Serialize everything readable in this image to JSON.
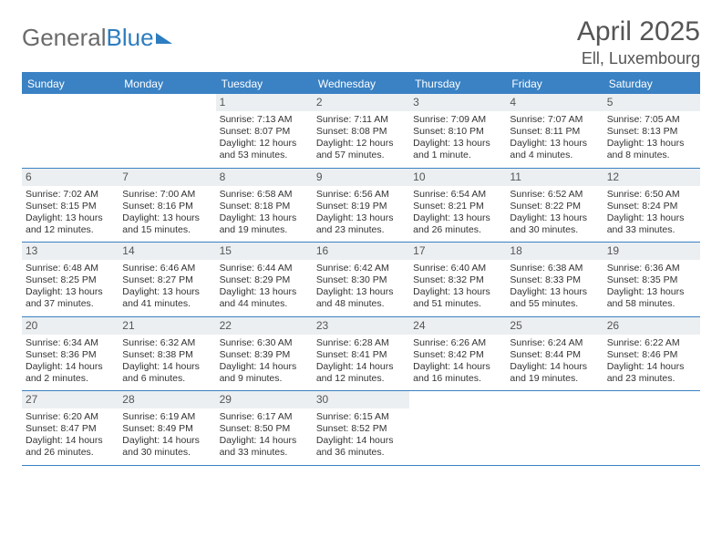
{
  "logo": {
    "part1": "General",
    "part2": "Blue"
  },
  "title": "April 2025",
  "location": "Ell, Luxembourg",
  "dayNames": [
    "Sunday",
    "Monday",
    "Tuesday",
    "Wednesday",
    "Thursday",
    "Friday",
    "Saturday"
  ],
  "colors": {
    "headerBlue": "#3a82c4",
    "logoBlue": "#2d7dc0",
    "dayNumBg": "#eceff1",
    "text": "#333333",
    "titleText": "#555555"
  },
  "weeks": [
    [
      {
        "n": "",
        "lines": []
      },
      {
        "n": "",
        "lines": []
      },
      {
        "n": "1",
        "lines": [
          "Sunrise: 7:13 AM",
          "Sunset: 8:07 PM",
          "Daylight: 12 hours and 53 minutes."
        ]
      },
      {
        "n": "2",
        "lines": [
          "Sunrise: 7:11 AM",
          "Sunset: 8:08 PM",
          "Daylight: 12 hours and 57 minutes."
        ]
      },
      {
        "n": "3",
        "lines": [
          "Sunrise: 7:09 AM",
          "Sunset: 8:10 PM",
          "Daylight: 13 hours and 1 minute."
        ]
      },
      {
        "n": "4",
        "lines": [
          "Sunrise: 7:07 AM",
          "Sunset: 8:11 PM",
          "Daylight: 13 hours and 4 minutes."
        ]
      },
      {
        "n": "5",
        "lines": [
          "Sunrise: 7:05 AM",
          "Sunset: 8:13 PM",
          "Daylight: 13 hours and 8 minutes."
        ]
      }
    ],
    [
      {
        "n": "6",
        "lines": [
          "Sunrise: 7:02 AM",
          "Sunset: 8:15 PM",
          "Daylight: 13 hours and 12 minutes."
        ]
      },
      {
        "n": "7",
        "lines": [
          "Sunrise: 7:00 AM",
          "Sunset: 8:16 PM",
          "Daylight: 13 hours and 15 minutes."
        ]
      },
      {
        "n": "8",
        "lines": [
          "Sunrise: 6:58 AM",
          "Sunset: 8:18 PM",
          "Daylight: 13 hours and 19 minutes."
        ]
      },
      {
        "n": "9",
        "lines": [
          "Sunrise: 6:56 AM",
          "Sunset: 8:19 PM",
          "Daylight: 13 hours and 23 minutes."
        ]
      },
      {
        "n": "10",
        "lines": [
          "Sunrise: 6:54 AM",
          "Sunset: 8:21 PM",
          "Daylight: 13 hours and 26 minutes."
        ]
      },
      {
        "n": "11",
        "lines": [
          "Sunrise: 6:52 AM",
          "Sunset: 8:22 PM",
          "Daylight: 13 hours and 30 minutes."
        ]
      },
      {
        "n": "12",
        "lines": [
          "Sunrise: 6:50 AM",
          "Sunset: 8:24 PM",
          "Daylight: 13 hours and 33 minutes."
        ]
      }
    ],
    [
      {
        "n": "13",
        "lines": [
          "Sunrise: 6:48 AM",
          "Sunset: 8:25 PM",
          "Daylight: 13 hours and 37 minutes."
        ]
      },
      {
        "n": "14",
        "lines": [
          "Sunrise: 6:46 AM",
          "Sunset: 8:27 PM",
          "Daylight: 13 hours and 41 minutes."
        ]
      },
      {
        "n": "15",
        "lines": [
          "Sunrise: 6:44 AM",
          "Sunset: 8:29 PM",
          "Daylight: 13 hours and 44 minutes."
        ]
      },
      {
        "n": "16",
        "lines": [
          "Sunrise: 6:42 AM",
          "Sunset: 8:30 PM",
          "Daylight: 13 hours and 48 minutes."
        ]
      },
      {
        "n": "17",
        "lines": [
          "Sunrise: 6:40 AM",
          "Sunset: 8:32 PM",
          "Daylight: 13 hours and 51 minutes."
        ]
      },
      {
        "n": "18",
        "lines": [
          "Sunrise: 6:38 AM",
          "Sunset: 8:33 PM",
          "Daylight: 13 hours and 55 minutes."
        ]
      },
      {
        "n": "19",
        "lines": [
          "Sunrise: 6:36 AM",
          "Sunset: 8:35 PM",
          "Daylight: 13 hours and 58 minutes."
        ]
      }
    ],
    [
      {
        "n": "20",
        "lines": [
          "Sunrise: 6:34 AM",
          "Sunset: 8:36 PM",
          "Daylight: 14 hours and 2 minutes."
        ]
      },
      {
        "n": "21",
        "lines": [
          "Sunrise: 6:32 AM",
          "Sunset: 8:38 PM",
          "Daylight: 14 hours and 6 minutes."
        ]
      },
      {
        "n": "22",
        "lines": [
          "Sunrise: 6:30 AM",
          "Sunset: 8:39 PM",
          "Daylight: 14 hours and 9 minutes."
        ]
      },
      {
        "n": "23",
        "lines": [
          "Sunrise: 6:28 AM",
          "Sunset: 8:41 PM",
          "Daylight: 14 hours and 12 minutes."
        ]
      },
      {
        "n": "24",
        "lines": [
          "Sunrise: 6:26 AM",
          "Sunset: 8:42 PM",
          "Daylight: 14 hours and 16 minutes."
        ]
      },
      {
        "n": "25",
        "lines": [
          "Sunrise: 6:24 AM",
          "Sunset: 8:44 PM",
          "Daylight: 14 hours and 19 minutes."
        ]
      },
      {
        "n": "26",
        "lines": [
          "Sunrise: 6:22 AM",
          "Sunset: 8:46 PM",
          "Daylight: 14 hours and 23 minutes."
        ]
      }
    ],
    [
      {
        "n": "27",
        "lines": [
          "Sunrise: 6:20 AM",
          "Sunset: 8:47 PM",
          "Daylight: 14 hours and 26 minutes."
        ]
      },
      {
        "n": "28",
        "lines": [
          "Sunrise: 6:19 AM",
          "Sunset: 8:49 PM",
          "Daylight: 14 hours and 30 minutes."
        ]
      },
      {
        "n": "29",
        "lines": [
          "Sunrise: 6:17 AM",
          "Sunset: 8:50 PM",
          "Daylight: 14 hours and 33 minutes."
        ]
      },
      {
        "n": "30",
        "lines": [
          "Sunrise: 6:15 AM",
          "Sunset: 8:52 PM",
          "Daylight: 14 hours and 36 minutes."
        ]
      },
      {
        "n": "",
        "lines": []
      },
      {
        "n": "",
        "lines": []
      },
      {
        "n": "",
        "lines": []
      }
    ]
  ]
}
